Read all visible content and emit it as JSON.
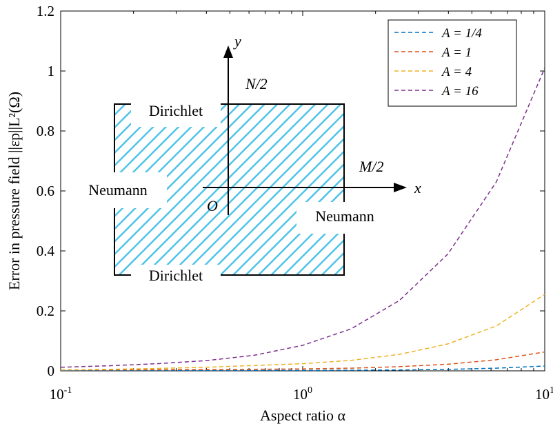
{
  "chart_data": {
    "type": "line",
    "xlabel": "Aspect ratio α",
    "ylabel": "Error in pressure field ||εp||L²(Ω)",
    "xscale": "log",
    "xlim": [
      0.1,
      10
    ],
    "ylim": [
      0,
      1.2
    ],
    "x_tick_labels": [
      {
        "base": "10",
        "exp": "-1"
      },
      {
        "base": "10",
        "exp": "0"
      },
      {
        "base": "10",
        "exp": "1"
      }
    ],
    "y_tick_labels": [
      "0",
      "0.2",
      "0.4",
      "0.6",
      "0.8",
      "1",
      "1.2"
    ],
    "y_ticks": [
      0,
      0.2,
      0.4,
      0.6,
      0.8,
      1.0,
      1.2
    ],
    "grid": false,
    "legend_position": "top-right",
    "x": [
      0.1,
      0.1585,
      0.2512,
      0.3981,
      0.631,
      1,
      1.585,
      2.512,
      3.981,
      6.31,
      10
    ],
    "series": [
      {
        "name": "A = 1/4",
        "color": "#0072BD",
        "style": "dashed",
        "values": [
          0.0007,
          0.0008,
          0.0009,
          0.001,
          0.0012,
          0.0015,
          0.002,
          0.003,
          0.005,
          0.009,
          0.016
        ]
      },
      {
        "name": "A = 1",
        "color": "#D95319",
        "style": "dashed",
        "values": [
          0.003,
          0.0033,
          0.0037,
          0.0043,
          0.0052,
          0.0065,
          0.009,
          0.014,
          0.022,
          0.037,
          0.063
        ]
      },
      {
        "name": "A = 4",
        "color": "#EDB120",
        "style": "dashed",
        "values": [
          0.003,
          0.005,
          0.008,
          0.012,
          0.018,
          0.024,
          0.035,
          0.055,
          0.09,
          0.15,
          0.255
        ]
      },
      {
        "name": "A = 16",
        "color": "#7E2F8E",
        "style": "dashed",
        "values": [
          0.012,
          0.017,
          0.024,
          0.034,
          0.052,
          0.085,
          0.14,
          0.235,
          0.39,
          0.63,
          1.01
        ]
      }
    ]
  },
  "inset": {
    "top_label": "Dirichlet",
    "bottom_label": "Dirichlet",
    "left_label": "Neumann",
    "right_label": "Neumann",
    "y_axis": "y",
    "x_axis": "x",
    "origin": "O",
    "half_height": "N/2",
    "half_width": "M/2",
    "hatch_color": "#4fc3e8"
  }
}
